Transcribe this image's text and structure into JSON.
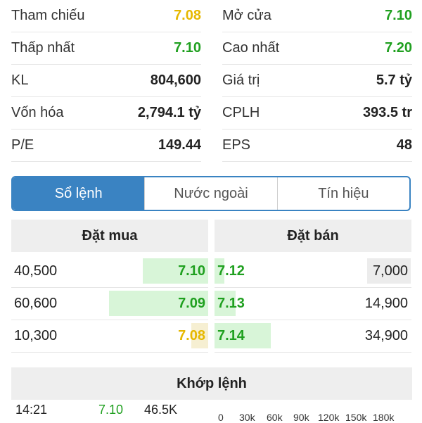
{
  "stats": [
    {
      "left_label": "Tham chiếu",
      "left_value": "7.08",
      "right_label": "Mở cửa",
      "right_value": "7.10"
    },
    {
      "left_label": "Thấp nhất",
      "left_value": "7.10",
      "right_label": "Cao nhất",
      "right_value": "7.20"
    },
    {
      "left_label": "KL",
      "left_value": "804,600",
      "right_label": "Giá trị",
      "right_value": "5.7 tỷ"
    },
    {
      "left_label": "Vốn hóa",
      "left_value": "2,794.1 tỷ",
      "right_label": "CPLH",
      "right_value": "393.5 tr"
    },
    {
      "left_label": "P/E",
      "left_value": "149.44",
      "right_label": "EPS",
      "right_value": "48"
    }
  ],
  "tabs": [
    "Sổ lệnh",
    "Nước ngoài",
    "Tín hiệu"
  ],
  "orderbook": {
    "buy_title": "Đặt mua",
    "sell_title": "Đặt bán",
    "rows": [
      {
        "buy_vol": "40,500",
        "buy_price": "7.10",
        "sell_price": "7.12",
        "sell_vol": "7,000"
      },
      {
        "buy_vol": "60,600",
        "buy_price": "7.09",
        "sell_price": "7.13",
        "sell_vol": "14,900"
      },
      {
        "buy_vol": "10,300",
        "buy_price": "7.08",
        "sell_price": "7.14",
        "sell_vol": "34,900"
      }
    ]
  },
  "matched": {
    "title": "Khớp lệnh",
    "trade": {
      "time": "14:21",
      "price": "7.10",
      "volume": "46.5K"
    },
    "axis_ticks": [
      "0",
      "30k",
      "60k",
      "90k",
      "120k",
      "150k",
      "180k"
    ]
  },
  "colors": {
    "accent": "#3a83c2",
    "up": "#20a020",
    "ref": "#e6b800",
    "bar_green": "#d8f5d8",
    "bar_gray": "#ececec"
  }
}
